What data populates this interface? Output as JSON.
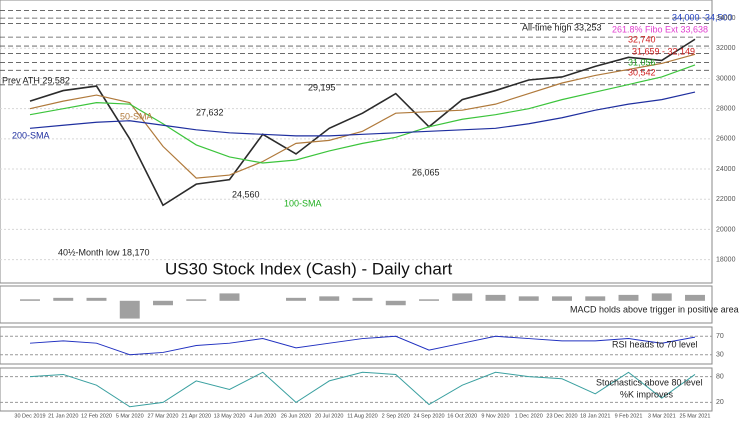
{
  "chart_data": [
    {
      "type": "line",
      "title": "US30 Stock Index (Cash) - Daily chart",
      "categories": [
        "30 Dec 2019",
        "21 Jan 2020",
        "12 Feb 2020",
        "5 Mar 2020",
        "27 Mar 2020",
        "21 Apr 2020",
        "13 May 2020",
        "4 Jun 2020",
        "26 Jun 2020",
        "20 Jul 2020",
        "11 Aug 2020",
        "2 Sep 2020",
        "24 Sep 2020",
        "16 Oct 2020",
        "9 Nov 2020",
        "1 Dec 2020",
        "23 Dec 2020",
        "18 Jan 2021",
        "9 Feb 2021",
        "3 Mar 2021",
        "25 Mar 2021"
      ],
      "series": [
        {
          "color": "#2b2b2b",
          "values": [
            28500,
            29200,
            29500,
            26000,
            21600,
            23000,
            23300,
            26300,
            25000,
            26700,
            27700,
            29000,
            26800,
            28600,
            29200,
            29900,
            30100,
            30800,
            31400,
            31200,
            32600
          ]
        },
        {
          "color": "#b07a3c",
          "values": [
            28000,
            28500,
            28900,
            28400,
            25500,
            23400,
            23600,
            24500,
            25700,
            25900,
            26500,
            27700,
            27800,
            27900,
            28300,
            29000,
            29700,
            30200,
            30600,
            31000,
            31600
          ]
        },
        {
          "color": "#3cc43c",
          "values": [
            27600,
            28000,
            28400,
            28300,
            27000,
            25600,
            24800,
            24400,
            24600,
            25200,
            25700,
            26100,
            26800,
            27300,
            27600,
            28000,
            28600,
            29100,
            29600,
            30100,
            30900
          ]
        },
        {
          "color": "#1f2f9f",
          "values": [
            26700,
            26900,
            27100,
            27200,
            26900,
            26600,
            26400,
            26300,
            26200,
            26200,
            26300,
            26400,
            26500,
            26600,
            26700,
            27000,
            27400,
            27900,
            28300,
            28600,
            29100
          ]
        }
      ],
      "levels": [
        34500,
        34000,
        33638,
        32740,
        32149,
        31659,
        31056,
        30542,
        29582
      ],
      "ylim": [
        16450,
        35200
      ],
      "yticks": [
        18000,
        20000,
        22000,
        24000,
        26000,
        28000,
        30000,
        32000,
        34000
      ],
      "grid": true,
      "annotations": [
        {
          "text": "34,000 -34,500",
          "color": "#2040c0"
        },
        {
          "text": "261.8% Fibo Ext 33,638",
          "color": "#e040d0"
        },
        {
          "text": "All-time high 33,253",
          "color": "#222222"
        },
        {
          "text": "32,740",
          "color": "#d02020"
        },
        {
          "text": "31,659 - 32,149",
          "color": "#d02020"
        },
        {
          "text": "31,056",
          "color": "#20a020"
        },
        {
          "text": "30,542",
          "color": "#d02020"
        },
        {
          "text": "Prev ATH 29,582",
          "color": "#222222"
        },
        {
          "text": "27,632",
          "color": "#222222"
        },
        {
          "text": "29,195",
          "color": "#222222"
        },
        {
          "text": "24,560",
          "color": "#222222"
        },
        {
          "text": "26,065",
          "color": "#222222"
        },
        {
          "text": "40½-Month low 18,170",
          "color": "#222222"
        },
        {
          "text": "50-SMA",
          "color": "#b07a3c"
        },
        {
          "text": "200-SMA",
          "color": "#1f2f9f"
        },
        {
          "text": "100-SMA",
          "color": "#20b020"
        }
      ]
    },
    {
      "type": "bar",
      "title": "MACD holds above trigger in positive area",
      "color": "#a0a0a0",
      "values": [
        100,
        200,
        200,
        -1200,
        -300,
        100,
        500,
        0,
        200,
        300,
        200,
        -300,
        100,
        500,
        400,
        300,
        300,
        300,
        400,
        500,
        400
      ],
      "ylim": [
        -1500,
        1000
      ]
    },
    {
      "type": "line",
      "title": "RSI heads to 70 level",
      "color": "#2030c0",
      "values": [
        55,
        60,
        55,
        30,
        35,
        50,
        55,
        65,
        45,
        55,
        65,
        70,
        40,
        55,
        70,
        65,
        60,
        60,
        65,
        55,
        68
      ],
      "ylim": [
        10,
        90
      ],
      "yticks": [
        30,
        70
      ]
    },
    {
      "type": "line",
      "title": "Stochastics above 80 level",
      "subtitle": "%K improves",
      "color": "#3aa0a0",
      "values": [
        80,
        85,
        60,
        10,
        20,
        70,
        50,
        90,
        20,
        70,
        90,
        85,
        15,
        60,
        90,
        80,
        75,
        40,
        90,
        30,
        85
      ],
      "ylim": [
        0,
        100
      ],
      "yticks": [
        20,
        80
      ]
    }
  ]
}
